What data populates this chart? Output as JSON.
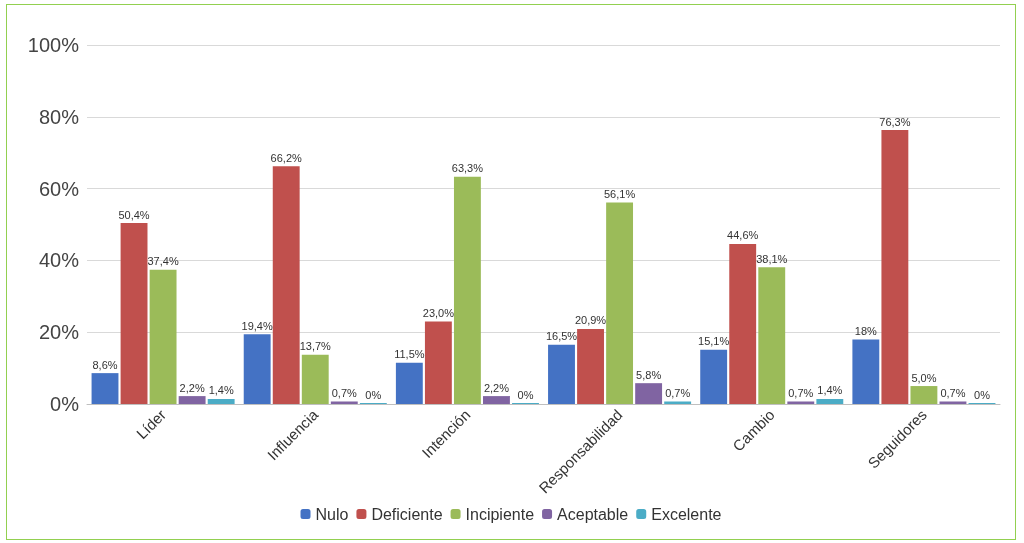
{
  "chart_data": {
    "type": "bar",
    "categories": [
      "Líder",
      "Influencia",
      "Intención",
      "Responsabilidad",
      "Cambio",
      "Seguidores"
    ],
    "series": [
      {
        "name": "Nulo",
        "color": "#4472c4",
        "values": [
          8.6,
          19.4,
          11.5,
          16.5,
          15.1,
          18
        ],
        "value_labels": [
          "8,6%",
          "19,4%",
          "11,5%",
          "16,5%",
          "15,1%",
          "18%"
        ]
      },
      {
        "name": "Deficiente",
        "color": "#c0504d",
        "values": [
          50.4,
          66.2,
          23.0,
          20.9,
          44.6,
          76.3
        ],
        "value_labels": [
          "50,4%",
          "66,2%",
          "23,0%",
          "20,9%",
          "44,6%",
          "76,3%"
        ]
      },
      {
        "name": "Incipiente",
        "color": "#9bbb59",
        "values": [
          37.4,
          13.7,
          63.3,
          56.1,
          38.1,
          5.0
        ],
        "value_labels": [
          "37,4%",
          "13,7%",
          "63,3%",
          "56,1%",
          "38,1%",
          "5,0%"
        ]
      },
      {
        "name": "Aceptable",
        "color": "#8064a2",
        "values": [
          2.2,
          0.7,
          2.2,
          5.8,
          0.7,
          0.7
        ],
        "value_labels": [
          "2,2%",
          "0,7%",
          "2,2%",
          "5,8%",
          "0,7%",
          "0,7%"
        ]
      },
      {
        "name": "Excelente",
        "color": "#4bacc6",
        "values": [
          1.4,
          0,
          0,
          0.7,
          1.4,
          0
        ],
        "value_labels": [
          "1,4%",
          "0%",
          "0%",
          "0,7%",
          "1,4%",
          "0%"
        ]
      }
    ],
    "ylim": [
      0,
      100
    ],
    "yticks": [
      {
        "value": 0,
        "label": "0%"
      },
      {
        "value": 20,
        "label": "20%"
      },
      {
        "value": 40,
        "label": "40%"
      },
      {
        "value": 60,
        "label": "60%"
      },
      {
        "value": 80,
        "label": "80%"
      },
      {
        "value": 100,
        "label": "100%"
      }
    ],
    "grid": "y",
    "legend": "bottom"
  }
}
